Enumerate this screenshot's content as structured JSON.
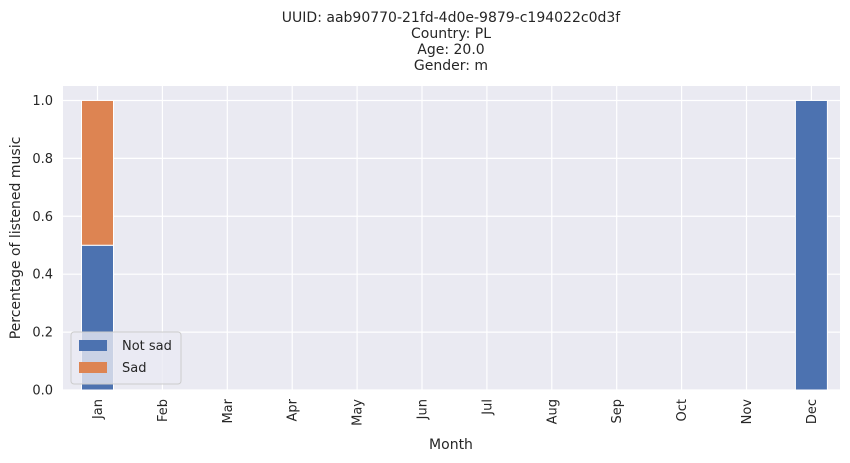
{
  "chart_data": {
    "type": "bar",
    "stacked": true,
    "title_lines": [
      "UUID: aab90770-21fd-4d0e-9879-c194022c0d3f",
      "Country: PL",
      "Age: 20.0",
      "Gender: m"
    ],
    "xlabel": "Month",
    "ylabel": "Percentage of listened music",
    "categories": [
      "Jan",
      "Feb",
      "Mar",
      "Apr",
      "May",
      "Jun",
      "Jul",
      "Aug",
      "Sep",
      "Oct",
      "Nov",
      "Dec"
    ],
    "yticks": [
      "0.0",
      "0.2",
      "0.4",
      "0.6",
      "0.8",
      "1.0"
    ],
    "ylim": [
      0,
      1.05
    ],
    "grid": true,
    "legend_position": "lower-left",
    "series": [
      {
        "name": "Not sad",
        "color": "#4c72b0",
        "values": [
          0.5,
          0,
          0,
          0,
          0,
          0,
          0,
          0,
          0,
          0,
          0,
          1.0
        ]
      },
      {
        "name": "Sad",
        "color": "#dd8452",
        "values": [
          0.5,
          0,
          0,
          0,
          0,
          0,
          0,
          0,
          0,
          0,
          0,
          0
        ]
      }
    ]
  }
}
